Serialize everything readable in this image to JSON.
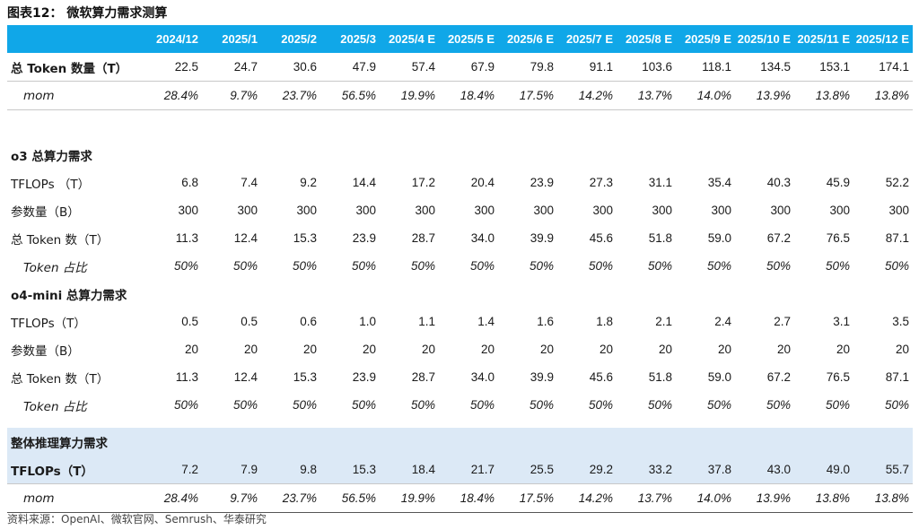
{
  "title": "图表12：  微软算力需求测算",
  "columns": [
    "2024/12",
    "2025/1",
    "2025/2",
    "2025/3",
    "2025/4 E",
    "2025/5 E",
    "2025/6 E",
    "2025/7 E",
    "2025/8 E",
    "2025/9 E",
    "2025/10 E",
    "2025/11 E",
    "2025/12 E"
  ],
  "total_token": {
    "label": "总 Token 数量（T）",
    "values": [
      "22.5",
      "24.7",
      "30.6",
      "47.9",
      "57.4",
      "67.9",
      "79.8",
      "91.1",
      "103.6",
      "118.1",
      "134.5",
      "153.1",
      "174.1"
    ]
  },
  "total_mom": {
    "label": "mom",
    "values": [
      "28.4%",
      "9.7%",
      "23.7%",
      "56.5%",
      "19.9%",
      "18.4%",
      "17.5%",
      "14.2%",
      "13.7%",
      "14.0%",
      "13.9%",
      "13.8%",
      "13.8%"
    ]
  },
  "o3": {
    "header": "o3 总算力需求",
    "tflops": {
      "label": "TFLOPs （T）",
      "values": [
        "6.8",
        "7.4",
        "9.2",
        "14.4",
        "17.2",
        "20.4",
        "23.9",
        "27.3",
        "31.1",
        "35.4",
        "40.3",
        "45.9",
        "52.2"
      ]
    },
    "params": {
      "label": "参数量（B）",
      "values": [
        "300",
        "300",
        "300",
        "300",
        "300",
        "300",
        "300",
        "300",
        "300",
        "300",
        "300",
        "300",
        "300"
      ]
    },
    "tokens": {
      "label": "总 Token 数（T）",
      "values": [
        "11.3",
        "12.4",
        "15.3",
        "23.9",
        "28.7",
        "34.0",
        "39.9",
        "45.6",
        "51.8",
        "59.0",
        "67.2",
        "76.5",
        "87.1"
      ]
    },
    "share": {
      "label": "Token 占比",
      "values": [
        "50%",
        "50%",
        "50%",
        "50%",
        "50%",
        "50%",
        "50%",
        "50%",
        "50%",
        "50%",
        "50%",
        "50%",
        "50%"
      ]
    }
  },
  "o4mini": {
    "header": "o4-mini 总算力需求",
    "tflops": {
      "label": "TFLOPs（T）",
      "values": [
        "0.5",
        "0.5",
        "0.6",
        "1.0",
        "1.1",
        "1.4",
        "1.6",
        "1.8",
        "2.1",
        "2.4",
        "2.7",
        "3.1",
        "3.5"
      ]
    },
    "params": {
      "label": "参数量（B）",
      "values": [
        "20",
        "20",
        "20",
        "20",
        "20",
        "20",
        "20",
        "20",
        "20",
        "20",
        "20",
        "20",
        "20"
      ]
    },
    "tokens": {
      "label": "总 Token 数（T）",
      "values": [
        "11.3",
        "12.4",
        "15.3",
        "23.9",
        "28.7",
        "34.0",
        "39.9",
        "45.6",
        "51.8",
        "59.0",
        "67.2",
        "76.5",
        "87.1"
      ]
    },
    "share": {
      "label": "Token 占比",
      "values": [
        "50%",
        "50%",
        "50%",
        "50%",
        "50%",
        "50%",
        "50%",
        "50%",
        "50%",
        "50%",
        "50%",
        "50%",
        "50%"
      ]
    }
  },
  "overall": {
    "header": "整体推理算力需求",
    "tflops": {
      "label": "TFLOPs（T）",
      "values": [
        "7.2",
        "7.9",
        "9.8",
        "15.3",
        "18.4",
        "21.7",
        "25.5",
        "29.2",
        "33.2",
        "37.8",
        "43.0",
        "49.0",
        "55.7"
      ]
    },
    "mom": {
      "label": "mom",
      "values": [
        "28.4%",
        "9.7%",
        "23.7%",
        "56.5%",
        "19.9%",
        "18.4%",
        "17.5%",
        "14.2%",
        "13.7%",
        "14.0%",
        "13.9%",
        "13.8%",
        "13.8%"
      ]
    }
  },
  "source": "资料来源：OpenAI、微软官网、Semrush、华泰研究",
  "colors": {
    "header_bg": "#10a7e8",
    "band_bg": "#dce9f6"
  }
}
